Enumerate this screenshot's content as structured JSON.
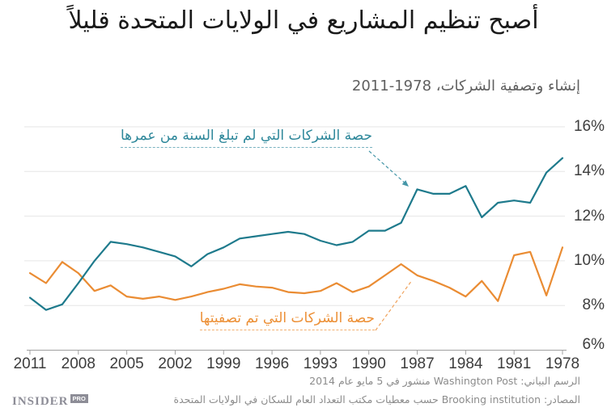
{
  "title": "أصبح تنظيم المشاريع في الولايات المتحدة قليلاً",
  "subtitle": "إنشاء وتصفية الشركات، 1978-2011",
  "annotations": {
    "entry_label": "حصة الشركات التي لم تبلغ السنة من عمرها",
    "exit_label": "حصة الشركات التي تم تصفيتها"
  },
  "footer": {
    "credit_line": "الرسم البياني: Washington Post منشور في 5 مايو عام 2014",
    "source_line": "المصادر: Brooking institution حسب معطيات مكتب التعداد العام للسكان في الولايات المتحدة",
    "logo_text": "INSIDER",
    "logo_badge": "PRO"
  },
  "colors": {
    "entry_line": "#1e7a8c",
    "exit_line": "#ea8c33",
    "grid": "#e6e6e6",
    "axis": "#a0a0a0",
    "tick_label": "#3d3d3d"
  },
  "chart_data": {
    "type": "line",
    "title": "إنشاء وتصفية الشركات، 1978-2011",
    "xlabel": "",
    "ylabel": "",
    "ylim": [
      6,
      16
    ],
    "x_reversed_rtl": true,
    "grid": "horizontal",
    "years": [
      1978,
      1979,
      1980,
      1981,
      1982,
      1983,
      1984,
      1985,
      1986,
      1987,
      1988,
      1989,
      1990,
      1991,
      1992,
      1993,
      1994,
      1995,
      1996,
      1997,
      1998,
      1999,
      2000,
      2001,
      2002,
      2003,
      2004,
      2005,
      2006,
      2007,
      2008,
      2009,
      2010,
      2011
    ],
    "x_tick_years": [
      2011,
      2008,
      2005,
      2002,
      1999,
      1996,
      1993,
      1990,
      1987,
      1984,
      1981,
      1978
    ],
    "y_ticks": [
      {
        "label": "16%",
        "value": 16
      },
      {
        "label": "14%",
        "value": 14
      },
      {
        "label": "12%",
        "value": 12
      },
      {
        "label": "10%",
        "value": 10
      },
      {
        "label": "8%",
        "value": 8
      },
      {
        "label": "6%",
        "value": 6
      }
    ],
    "series": [
      {
        "name": "حصة الشركات التي لم تبلغ السنة من عمرها",
        "color": "#1e7a8c",
        "values": [
          14.6,
          13.95,
          12.6,
          12.7,
          12.6,
          11.95,
          13.35,
          13.0,
          13.0,
          13.2,
          11.7,
          11.35,
          11.35,
          10.85,
          10.7,
          10.9,
          11.2,
          11.3,
          11.2,
          11.1,
          11.0,
          10.6,
          10.3,
          9.75,
          10.2,
          10.4,
          10.6,
          10.75,
          10.85,
          10.0,
          9.0,
          8.05,
          7.8,
          8.35
        ]
      },
      {
        "name": "حصة الشركات التي تم تصفيتها",
        "color": "#ea8c33",
        "values": [
          10.6,
          8.45,
          10.4,
          10.25,
          8.2,
          9.1,
          8.4,
          8.8,
          9.1,
          9.35,
          9.85,
          9.35,
          8.85,
          8.6,
          9.0,
          8.65,
          8.55,
          8.6,
          8.8,
          8.85,
          8.95,
          8.75,
          8.6,
          8.4,
          8.25,
          8.4,
          8.3,
          8.4,
          8.9,
          8.65,
          9.45,
          9.95,
          9.0,
          9.45
        ]
      }
    ]
  }
}
